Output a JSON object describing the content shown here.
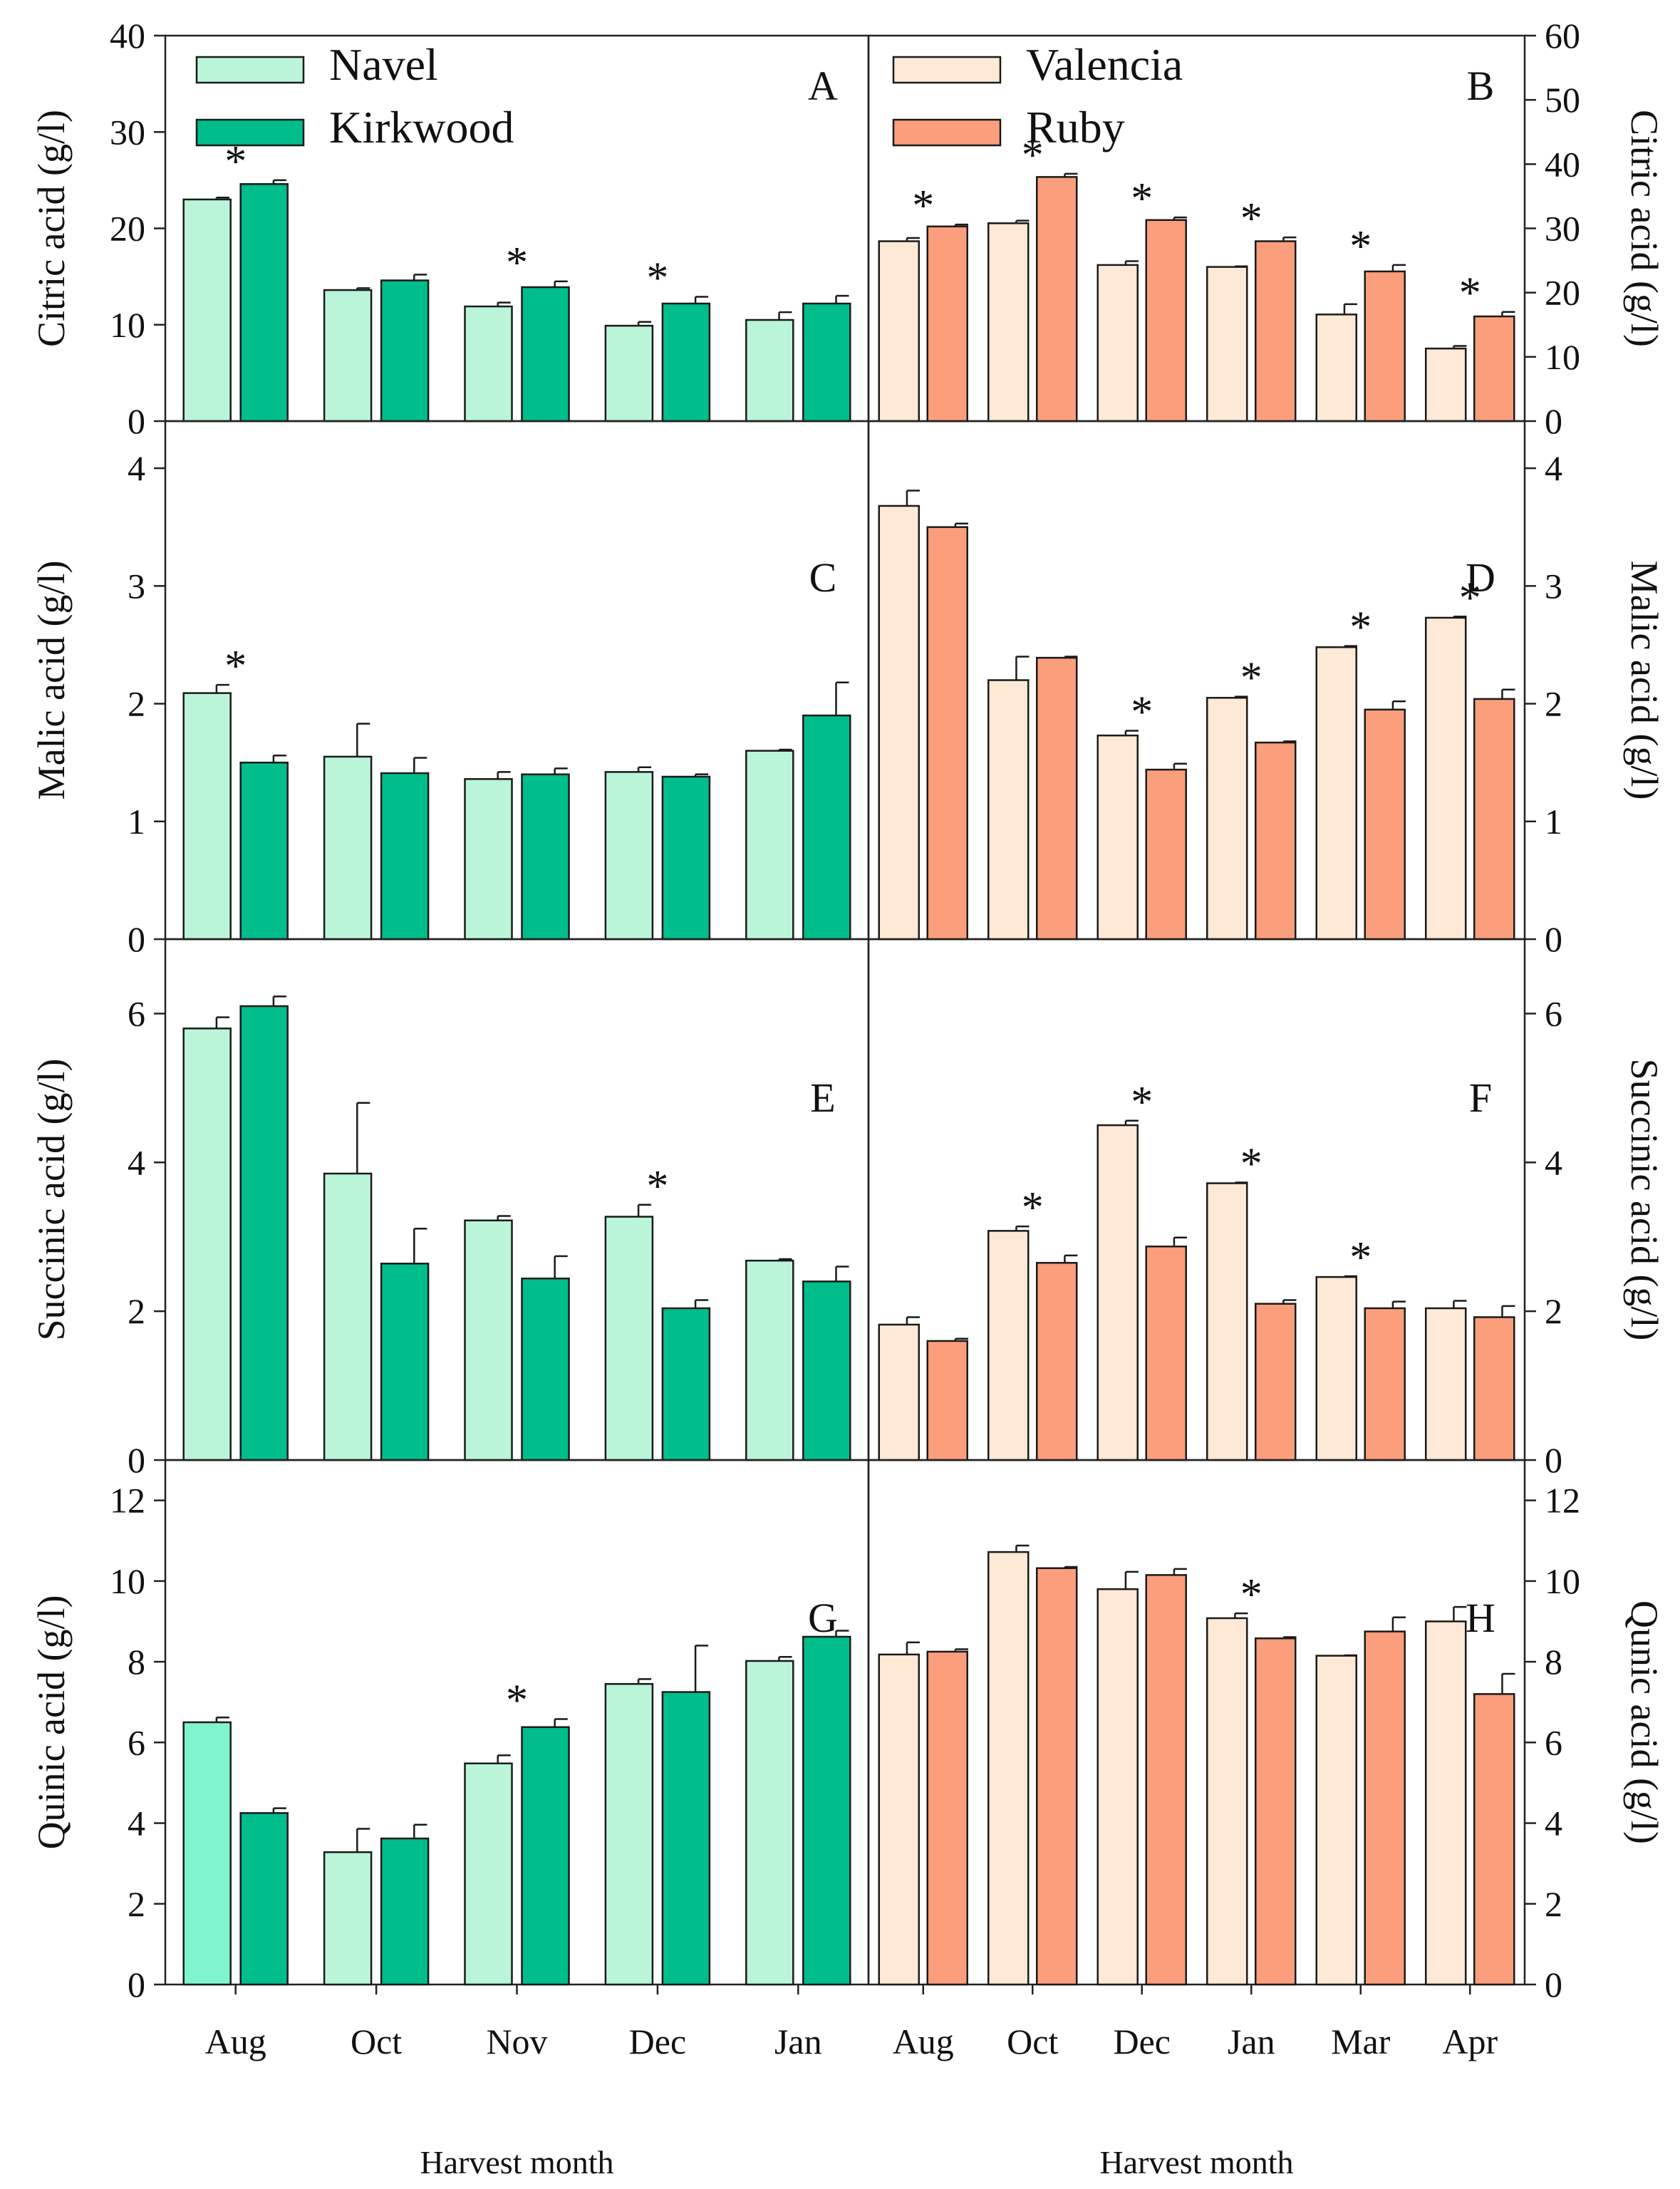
{
  "colors": {
    "Navel": "#baf5d9",
    "Kirkwood": "#00bd8c",
    "Valencia": "#fde9d5",
    "Ruby": "#fb9e7c",
    "NavelQuinicAug": "#7ff5cf"
  },
  "chart_data": [
    {
      "type": "bar",
      "panel": "A",
      "side": "left",
      "ylabel": "Citric acid (g/l)",
      "xlabel": "",
      "ylim": [
        0,
        40
      ],
      "yticks": [
        "0",
        "10",
        "20",
        "30",
        "40"
      ],
      "categories": [
        "Aug",
        "Oct",
        "Nov",
        "Dec",
        "Jan"
      ],
      "series": [
        {
          "name": "Navel",
          "values": [
            23.0,
            13.6,
            11.9,
            9.9,
            10.5
          ],
          "errors": [
            0.2,
            0.2,
            0.4,
            0.4,
            0.8
          ]
        },
        {
          "name": "Kirkwood",
          "values": [
            24.6,
            14.6,
            13.9,
            12.2,
            12.2
          ],
          "errors": [
            0.4,
            0.6,
            0.6,
            0.7,
            0.8
          ]
        }
      ],
      "significant": [
        true,
        false,
        true,
        true,
        false
      ],
      "legend": [
        "Navel",
        "Kirkwood"
      ]
    },
    {
      "type": "bar",
      "panel": "B",
      "side": "right",
      "ylabel": "Citric acid (g/l)",
      "xlabel": "",
      "ylim": [
        0,
        60
      ],
      "yticks": [
        "0",
        "10",
        "20",
        "30",
        "40",
        "50",
        "60"
      ],
      "categories": [
        "Aug",
        "Oct",
        "Dec",
        "Jan",
        "Mar",
        "Apr"
      ],
      "series": [
        {
          "name": "Valencia",
          "values": [
            28.0,
            30.8,
            24.3,
            24.0,
            16.6,
            11.3
          ],
          "errors": [
            0.5,
            0.4,
            0.6,
            0.1,
            1.6,
            0.4
          ]
        },
        {
          "name": "Ruby",
          "values": [
            30.3,
            38.0,
            31.3,
            28.0,
            23.3,
            16.3
          ],
          "errors": [
            0.3,
            0.5,
            0.4,
            0.6,
            1.0,
            0.7
          ]
        }
      ],
      "significant": [
        true,
        true,
        true,
        true,
        true,
        true
      ],
      "legend": [
        "Valencia",
        "Ruby"
      ]
    },
    {
      "type": "bar",
      "panel": "C",
      "side": "left",
      "ylabel": "Malic acid (g/l)",
      "xlabel": "",
      "ylim": [
        0,
        4.4
      ],
      "yticks": [
        "0",
        "1",
        "2",
        "3",
        "4"
      ],
      "categories": [
        "Aug",
        "Oct",
        "Nov",
        "Dec",
        "Jan"
      ],
      "series": [
        {
          "name": "Navel",
          "values": [
            2.09,
            1.55,
            1.36,
            1.42,
            1.6
          ],
          "errors": [
            0.07,
            0.28,
            0.06,
            0.04,
            0.01
          ]
        },
        {
          "name": "Kirkwood",
          "values": [
            1.5,
            1.41,
            1.4,
            1.38,
            1.9
          ],
          "errors": [
            0.06,
            0.13,
            0.05,
            0.02,
            0.28
          ]
        }
      ],
      "significant": [
        true,
        false,
        false,
        false,
        false
      ]
    },
    {
      "type": "bar",
      "panel": "D",
      "side": "right",
      "ylabel": "Malic acid (g/l)",
      "xlabel": "",
      "ylim": [
        0,
        4.4
      ],
      "yticks": [
        "0",
        "1",
        "2",
        "3",
        "4"
      ],
      "categories": [
        "Aug",
        "Oct",
        "Dec",
        "Jan",
        "Mar",
        "Apr"
      ],
      "series": [
        {
          "name": "Valencia",
          "values": [
            3.68,
            2.2,
            1.73,
            2.05,
            2.48,
            2.73
          ],
          "errors": [
            0.13,
            0.2,
            0.04,
            0.01,
            0.01,
            0.01
          ]
        },
        {
          "name": "Ruby",
          "values": [
            3.5,
            2.39,
            1.44,
            1.67,
            1.95,
            2.04
          ],
          "errors": [
            0.03,
            0.01,
            0.05,
            0.01,
            0.07,
            0.08
          ]
        }
      ],
      "significant": [
        false,
        false,
        true,
        true,
        true,
        true
      ]
    },
    {
      "type": "bar",
      "panel": "E",
      "side": "left",
      "ylabel": "Succinic acid (g/l)",
      "xlabel": "",
      "ylim": [
        0,
        7
      ],
      "yticks": [
        "0",
        "2",
        "4",
        "6"
      ],
      "categories": [
        "Aug",
        "Oct",
        "Nov",
        "Dec",
        "Jan"
      ],
      "series": [
        {
          "name": "Navel",
          "values": [
            5.8,
            3.85,
            3.22,
            3.27,
            2.68
          ],
          "errors": [
            0.15,
            0.95,
            0.06,
            0.16,
            0.02
          ]
        },
        {
          "name": "Kirkwood",
          "values": [
            6.1,
            2.64,
            2.44,
            2.04,
            2.4
          ],
          "errors": [
            0.13,
            0.47,
            0.3,
            0.11,
            0.2
          ]
        }
      ],
      "significant": [
        false,
        false,
        false,
        true,
        false
      ]
    },
    {
      "type": "bar",
      "panel": "F",
      "side": "right",
      "ylabel": "Succinic acid (g/l)",
      "xlabel": "",
      "ylim": [
        0,
        7
      ],
      "yticks": [
        "0",
        "2",
        "4",
        "6"
      ],
      "categories": [
        "Aug",
        "Oct",
        "Dec",
        "Jan",
        "Mar",
        "Apr"
      ],
      "series": [
        {
          "name": "Valencia",
          "values": [
            1.82,
            3.08,
            4.5,
            3.72,
            2.46,
            2.04
          ],
          "errors": [
            0.1,
            0.06,
            0.06,
            0.01,
            0.01,
            0.1
          ]
        },
        {
          "name": "Ruby",
          "values": [
            1.6,
            2.65,
            2.87,
            2.1,
            2.04,
            1.92
          ],
          "errors": [
            0.03,
            0.1,
            0.12,
            0.05,
            0.09,
            0.15
          ]
        }
      ],
      "significant": [
        false,
        true,
        true,
        true,
        true,
        false
      ]
    },
    {
      "type": "bar",
      "panel": "G",
      "side": "left",
      "ylabel": "Quinic acid (g/l)",
      "xlabel": "Harvest month",
      "ylim": [
        0,
        13
      ],
      "yticks": [
        "0",
        "2",
        "4",
        "6",
        "8",
        "10",
        "12"
      ],
      "categories": [
        "Aug",
        "Oct",
        "Nov",
        "Dec",
        "Jan"
      ],
      "series": [
        {
          "name": "Navel",
          "values": [
            6.5,
            3.28,
            5.48,
            7.45,
            8.02
          ],
          "errors": [
            0.12,
            0.58,
            0.2,
            0.12,
            0.1
          ]
        },
        {
          "name": "Kirkwood",
          "values": [
            4.25,
            3.62,
            6.38,
            7.25,
            8.62
          ],
          "errors": [
            0.12,
            0.34,
            0.2,
            1.15,
            0.15
          ]
        }
      ],
      "significant": [
        false,
        false,
        true,
        false,
        false
      ]
    },
    {
      "type": "bar",
      "panel": "H",
      "side": "right",
      "ylabel": "Qunic acid (g/l)",
      "xlabel": "Harvest month",
      "ylim": [
        0,
        13
      ],
      "yticks": [
        "0",
        "2",
        "4",
        "6",
        "8",
        "10",
        "12"
      ],
      "categories": [
        "Aug",
        "Oct",
        "Dec",
        "Jan",
        "Mar",
        "Apr"
      ],
      "series": [
        {
          "name": "Valencia",
          "values": [
            8.18,
            10.72,
            9.8,
            9.08,
            8.15,
            9.0
          ],
          "errors": [
            0.3,
            0.16,
            0.43,
            0.12,
            0.01,
            0.36
          ]
        },
        {
          "name": "Ruby",
          "values": [
            8.25,
            10.32,
            10.15,
            8.58,
            8.75,
            7.2
          ],
          "errors": [
            0.06,
            0.03,
            0.15,
            0.03,
            0.35,
            0.5
          ]
        }
      ],
      "significant": [
        false,
        false,
        false,
        true,
        false,
        false
      ]
    }
  ]
}
